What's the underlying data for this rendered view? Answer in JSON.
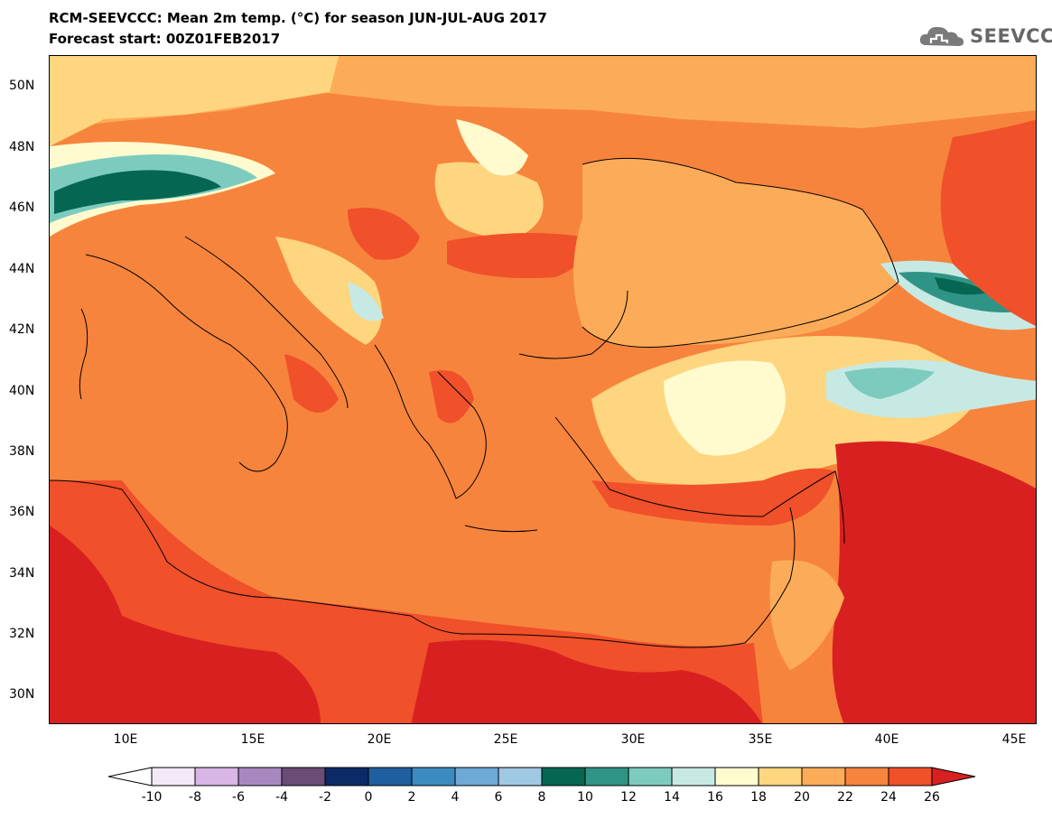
{
  "header": {
    "title": "RCM-SEEVCCC: Mean 2m temp. (°C) for season JUN-JUL-AUG 2017",
    "subtitle": "Forecast start: 00Z01FEB2017",
    "logo_text": "SEEVCCC"
  },
  "axes": {
    "lat_labels": [
      "50N",
      "48N",
      "46N",
      "44N",
      "42N",
      "40N",
      "38N",
      "36N",
      "34N",
      "32N",
      "30N"
    ],
    "lon_labels": [
      "10E",
      "15E",
      "20E",
      "25E",
      "30E",
      "35E",
      "40E",
      "45E"
    ]
  },
  "colorbar": {
    "labels": [
      "-10",
      "-8",
      "-6",
      "-4",
      "-2",
      "0",
      "2",
      "4",
      "6",
      "8",
      "10",
      "12",
      "14",
      "16",
      "18",
      "20",
      "22",
      "24",
      "26"
    ],
    "colors": [
      "#f3e8f5",
      "#d8b6e6",
      "#a887c1",
      "#6a4c76",
      "#0c2b66",
      "#1f5fa0",
      "#3b8bc1",
      "#6fa9d6",
      "#9fc8e3",
      "#056652",
      "#2f9485",
      "#7dcbbf",
      "#c7e9e3",
      "#fffbcf",
      "#fdd67f",
      "#fcac58",
      "#f7843d",
      "#f0502a"
    ],
    "low_color": "#ffffff",
    "high_color": "#d92020"
  },
  "map": {
    "background_color": "#f7843d",
    "regions": [
      {
        "name": "alps-cool-band",
        "color": "#7dcbbf"
      },
      {
        "name": "alps-core",
        "color": "#056652"
      },
      {
        "name": "north-warm",
        "color": "#fcac58"
      },
      {
        "name": "central-europe",
        "color": "#fdd67f"
      },
      {
        "name": "black-sea",
        "color": "#fcac58"
      },
      {
        "name": "anatolia-plateau",
        "color": "#fdd67f"
      },
      {
        "name": "anatolia-cool",
        "color": "#c7e9e3"
      },
      {
        "name": "caucasus-cool",
        "color": "#2f9485"
      },
      {
        "name": "north-africa-hot",
        "color": "#d92020"
      },
      {
        "name": "arabia-hot",
        "color": "#d92020"
      }
    ]
  }
}
